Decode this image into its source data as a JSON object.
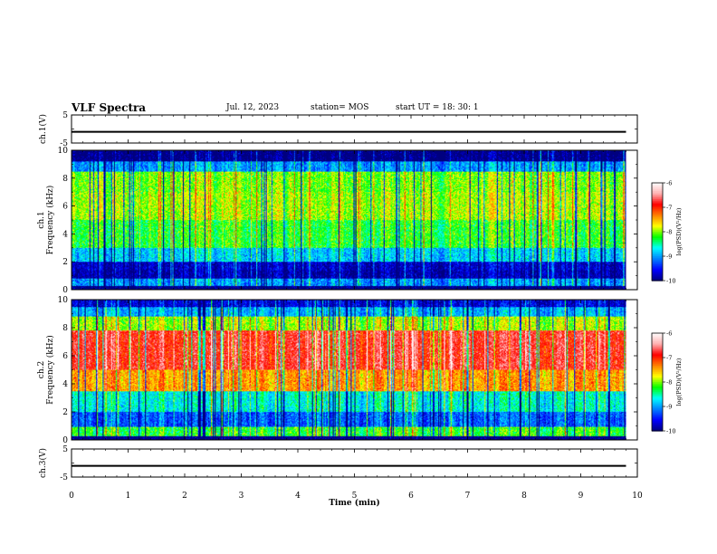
{
  "header": {
    "title": "VLF Spectra",
    "date": "Jul. 12, 2023",
    "station": "station= MOS",
    "start_time": "start UT = 18: 30: 1"
  },
  "chart_data": [
    {
      "type": "line",
      "panel": "voltage-ch1",
      "ylabel": "ch.1(V)",
      "ylim": [
        -5,
        5
      ],
      "yticks": [
        5,
        -5
      ],
      "x": [
        0,
        9.8
      ],
      "y": [
        -1,
        -1
      ]
    },
    {
      "type": "heatmap",
      "panel": "spectrogram-ch1",
      "ylabel": "ch.1\nFrequency (kHz)",
      "ylim": [
        0,
        10
      ],
      "yticks": [
        0,
        2,
        4,
        6,
        8,
        10
      ],
      "xlim": [
        0,
        10
      ],
      "data_end_min": 9.8,
      "colorbar": {
        "label": "log(PSD)(V²/Hz)",
        "range": [
          -10,
          -6
        ],
        "ticks": [
          -6,
          -7,
          -8,
          -9,
          -10
        ]
      },
      "bands": [
        {
          "fmin": 0.0,
          "fmax": 0.3,
          "level": -10.0
        },
        {
          "fmin": 0.3,
          "fmax": 0.8,
          "level": -9.0
        },
        {
          "fmin": 0.8,
          "fmax": 1.4,
          "level": -9.8
        },
        {
          "fmin": 1.4,
          "fmax": 2.0,
          "level": -9.7
        },
        {
          "fmin": 2.0,
          "fmax": 3.0,
          "level": -8.8
        },
        {
          "fmin": 3.0,
          "fmax": 5.0,
          "level": -8.2
        },
        {
          "fmin": 5.0,
          "fmax": 7.0,
          "level": -7.9
        },
        {
          "fmin": 7.0,
          "fmax": 8.5,
          "level": -8.0
        },
        {
          "fmin": 8.5,
          "fmax": 9.2,
          "level": -9.0
        },
        {
          "fmin": 9.2,
          "fmax": 10.0,
          "level": -10.0
        }
      ]
    },
    {
      "type": "heatmap",
      "panel": "spectrogram-ch2",
      "ylabel": "ch.2\nFrequency (kHz)",
      "ylim": [
        0,
        10
      ],
      "yticks": [
        0,
        2,
        4,
        6,
        8,
        10
      ],
      "xlim": [
        0,
        10
      ],
      "data_end_min": 9.8,
      "colorbar": {
        "label": "log(PSD)(V²/Hz)",
        "range": [
          -10,
          -6
        ],
        "ticks": [
          -6,
          -7,
          -8,
          -9,
          -10
        ]
      },
      "bands": [
        {
          "fmin": 0.0,
          "fmax": 0.3,
          "level": -10.0
        },
        {
          "fmin": 0.3,
          "fmax": 0.9,
          "level": -8.2
        },
        {
          "fmin": 0.9,
          "fmax": 2.0,
          "level": -9.2
        },
        {
          "fmin": 2.0,
          "fmax": 3.5,
          "level": -8.6
        },
        {
          "fmin": 3.5,
          "fmax": 5.0,
          "level": -7.4
        },
        {
          "fmin": 5.0,
          "fmax": 7.8,
          "level": -6.8
        },
        {
          "fmin": 7.8,
          "fmax": 8.8,
          "level": -7.9
        },
        {
          "fmin": 8.8,
          "fmax": 9.5,
          "level": -8.9
        },
        {
          "fmin": 9.5,
          "fmax": 10.0,
          "level": -9.6
        }
      ]
    },
    {
      "type": "line",
      "panel": "voltage-ch3",
      "ylabel": "ch.3(V)",
      "ylim": [
        -5,
        5
      ],
      "yticks": [
        5,
        -5
      ],
      "x": [
        0,
        9.8
      ],
      "y": [
        -1,
        -1
      ]
    }
  ],
  "xaxis": {
    "label": "Time (min)",
    "ticks": [
      "0",
      "1",
      "2",
      "3",
      "4",
      "5",
      "6",
      "7",
      "8",
      "9",
      "10"
    ]
  },
  "colors": {
    "colormap": [
      "#00007f",
      "#0000ff",
      "#0080ff",
      "#00ffff",
      "#00ff00",
      "#ffff00",
      "#ff8000",
      "#ff0000",
      "#ffb0b0",
      "#ffffff"
    ]
  }
}
